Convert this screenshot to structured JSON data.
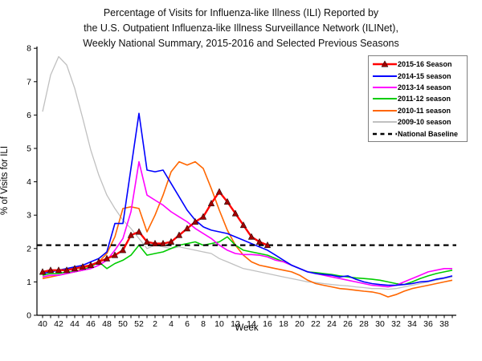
{
  "title": {
    "line1": "Percentage of Visits for Influenza-like Illness (ILI) Reported by",
    "line2": "the U.S. Outpatient Influenza-like Illness Surveillance Network (ILINet),",
    "line3": "Weekly National Summary, 2015-2016 and Selected Previous Seasons"
  },
  "chart_data": {
    "type": "line",
    "xlabel": "Week",
    "ylabel": "% of Visits for ILI",
    "ylim": [
      0,
      8
    ],
    "yticks": [
      0,
      1,
      2,
      3,
      4,
      5,
      6,
      7,
      8
    ],
    "grid": false,
    "legend_position": "top-right",
    "weeks": [
      "40",
      "41",
      "42",
      "43",
      "44",
      "45",
      "46",
      "47",
      "48",
      "49",
      "50",
      "51",
      "52",
      "1",
      "2",
      "3",
      "4",
      "5",
      "6",
      "7",
      "8",
      "9",
      "10",
      "11",
      "12",
      "13",
      "14",
      "15",
      "16",
      "17",
      "18",
      "19",
      "20",
      "21",
      "22",
      "23",
      "24",
      "25",
      "26",
      "27",
      "28",
      "29",
      "30",
      "31",
      "32",
      "33",
      "34",
      "35",
      "36",
      "37",
      "38",
      "39"
    ],
    "x_labeled_every": 2,
    "national_baseline": {
      "label": "National Baseline",
      "value": 2.1,
      "color": "#000000",
      "style": "dashed"
    },
    "series": [
      {
        "name": "2015-16 Season",
        "color": "#ff0000",
        "marker": "triangle",
        "marker_color": "#a00000",
        "line_width": 2.4,
        "values": [
          1.3,
          1.35,
          1.35,
          1.35,
          1.4,
          1.45,
          1.5,
          1.6,
          1.7,
          1.8,
          1.95,
          2.4,
          2.5,
          2.2,
          2.15,
          2.15,
          2.2,
          2.4,
          2.6,
          2.8,
          2.95,
          3.35,
          3.7,
          3.4,
          3.05,
          2.7,
          2.35,
          2.2,
          2.1
        ]
      },
      {
        "name": "2014-15 season",
        "color": "#0000ff",
        "marker": "none",
        "line_width": 1.6,
        "values": [
          1.25,
          1.3,
          1.35,
          1.4,
          1.45,
          1.5,
          1.6,
          1.7,
          1.9,
          2.75,
          2.75,
          4.4,
          6.05,
          4.35,
          4.3,
          4.35,
          3.95,
          3.55,
          3.15,
          2.85,
          2.65,
          2.55,
          2.5,
          2.45,
          2.35,
          2.25,
          2.15,
          2.05,
          1.95,
          1.8,
          1.65,
          1.5,
          1.4,
          1.3,
          1.25,
          1.22,
          1.2,
          1.15,
          1.18,
          1.08,
          1.0,
          0.95,
          0.92,
          0.9,
          0.9,
          0.92,
          0.95,
          1.0,
          1.02,
          1.08,
          1.12,
          1.18
        ]
      },
      {
        "name": "2013-14 season",
        "color": "#ff00ff",
        "marker": "none",
        "line_width": 1.6,
        "values": [
          1.15,
          1.2,
          1.2,
          1.25,
          1.3,
          1.35,
          1.4,
          1.5,
          1.65,
          1.95,
          2.3,
          3.1,
          4.6,
          3.6,
          3.45,
          3.3,
          3.1,
          2.95,
          2.8,
          2.6,
          2.45,
          2.3,
          2.1,
          1.95,
          1.85,
          1.82,
          1.82,
          1.8,
          1.75,
          1.65,
          1.6,
          1.5,
          1.4,
          1.3,
          1.25,
          1.2,
          1.15,
          1.1,
          1.05,
          1.0,
          0.95,
          0.9,
          0.88,
          0.85,
          0.9,
          1.0,
          1.1,
          1.2,
          1.3,
          1.35,
          1.4,
          1.4
        ]
      },
      {
        "name": "2011-12 season",
        "color": "#00cc00",
        "marker": "none",
        "line_width": 1.6,
        "values": [
          1.2,
          1.25,
          1.25,
          1.3,
          1.3,
          1.35,
          1.45,
          1.6,
          1.4,
          1.55,
          1.65,
          1.8,
          2.1,
          1.8,
          1.85,
          1.9,
          2.0,
          2.1,
          2.15,
          2.2,
          2.1,
          2.15,
          2.2,
          2.35,
          2.1,
          1.95,
          1.9,
          1.85,
          1.8,
          1.7,
          1.6,
          1.5,
          1.4,
          1.3,
          1.28,
          1.25,
          1.22,
          1.18,
          1.15,
          1.12,
          1.1,
          1.08,
          1.05,
          1.0,
          0.95,
          0.92,
          1.0,
          1.1,
          1.18,
          1.25,
          1.3,
          1.35
        ]
      },
      {
        "name": "2010-11 season",
        "color": "#ff6600",
        "marker": "none",
        "line_width": 1.6,
        "values": [
          1.1,
          1.15,
          1.2,
          1.25,
          1.3,
          1.4,
          1.5,
          1.6,
          1.85,
          2.35,
          3.2,
          3.25,
          3.2,
          2.5,
          3.0,
          3.6,
          4.3,
          4.6,
          4.5,
          4.6,
          4.4,
          3.8,
          3.15,
          2.55,
          2.1,
          1.8,
          1.6,
          1.5,
          1.45,
          1.4,
          1.35,
          1.3,
          1.2,
          1.05,
          0.95,
          0.9,
          0.85,
          0.8,
          0.78,
          0.75,
          0.72,
          0.7,
          0.65,
          0.55,
          0.62,
          0.72,
          0.8,
          0.85,
          0.9,
          0.95,
          1.0,
          1.05
        ]
      },
      {
        "name": "2009-10 season",
        "color": "#c0c0c0",
        "marker": "none",
        "line_width": 1.3,
        "values": [
          6.1,
          7.2,
          7.75,
          7.5,
          6.8,
          5.9,
          4.95,
          4.2,
          3.6,
          3.2,
          2.85,
          2.6,
          2.3,
          2.0,
          2.1,
          2.05,
          2.0,
          2.05,
          2.0,
          1.95,
          1.9,
          1.85,
          1.7,
          1.6,
          1.5,
          1.4,
          1.35,
          1.3,
          1.25,
          1.2,
          1.15,
          1.1,
          1.05,
          1.0,
          0.98,
          0.95,
          0.92,
          0.9,
          0.88,
          0.85,
          0.83,
          0.8,
          0.8,
          0.78,
          0.8,
          0.85,
          0.9,
          0.95,
          1.0,
          1.05,
          1.1,
          1.15
        ]
      }
    ]
  }
}
